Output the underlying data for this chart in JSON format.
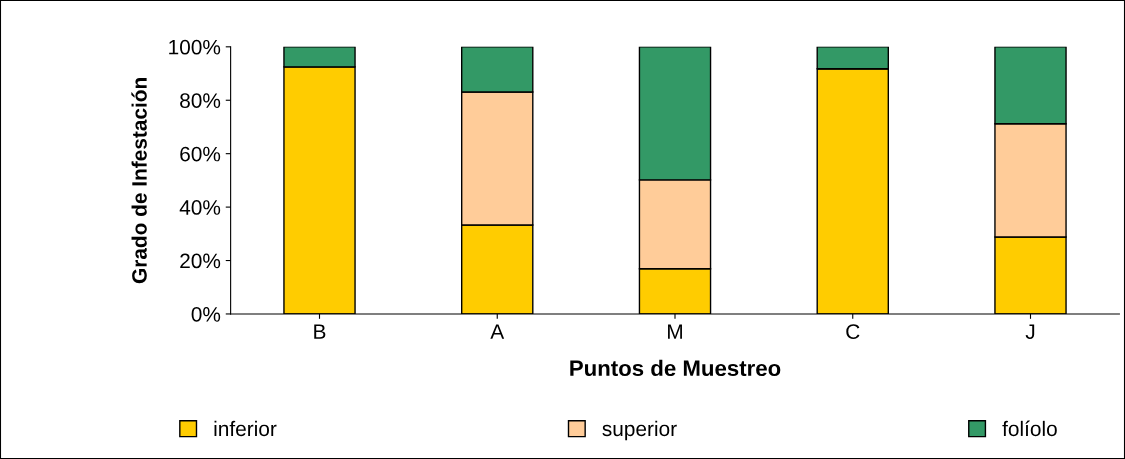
{
  "chart_data": {
    "type": "bar",
    "stacked": true,
    "xlabel": "Puntos de Muestreo",
    "ylabel": "Grado de Infestación",
    "categories": [
      "B",
      "A",
      "M",
      "C",
      "J"
    ],
    "series": [
      {
        "name": "inferior",
        "color": "#ffcc00",
        "values": [
          92.5,
          33.3,
          16.9,
          91.8,
          28.8
        ]
      },
      {
        "name": "superior",
        "color": "#ffcc99",
        "values": [
          0,
          49.8,
          33.3,
          0,
          42.4
        ]
      },
      {
        "name": "folíolo",
        "color": "#339966",
        "values": [
          7.5,
          16.9,
          49.8,
          8.2,
          28.8
        ]
      }
    ],
    "ylim": [
      0,
      100
    ],
    "yticks": [
      {
        "value": 0,
        "label": "0%"
      },
      {
        "value": 20,
        "label": "20%"
      },
      {
        "value": 40,
        "label": "40%"
      },
      {
        "value": 60,
        "label": "60%"
      },
      {
        "value": 80,
        "label": "80%"
      },
      {
        "value": 100,
        "label": "100%"
      }
    ],
    "grid": false,
    "legend": "bottom"
  }
}
